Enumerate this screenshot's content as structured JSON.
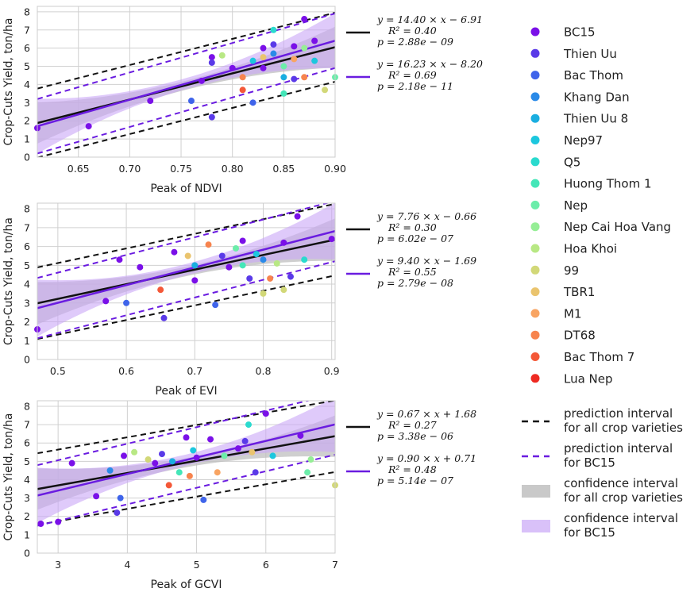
{
  "chart_data": [
    {
      "type": "scatter",
      "xlabel": "Peak of NDVI",
      "ylabel": "Crop-Cuts Yield, ton/ha",
      "xlim": [
        0.61,
        0.9
      ],
      "ylim": [
        0,
        8.3
      ],
      "xticks": [
        "0.65",
        "0.70",
        "0.75",
        "0.80",
        "0.85",
        "0.90"
      ],
      "xtick_values": [
        0.65,
        0.7,
        0.75,
        0.8,
        0.85,
        0.9
      ],
      "yticks": [
        "0",
        "1",
        "2",
        "3",
        "4",
        "5",
        "6",
        "7",
        "8"
      ],
      "grid": true,
      "fit_all": {
        "slope": 14.4,
        "intercept": -6.91,
        "eq": "y = 14.40 × x − 6.91",
        "r2": "R² = 0.40",
        "p": "p = 2.88e − 09",
        "pi_half": 1.9
      },
      "fit_bc15": {
        "slope": 16.23,
        "intercept": -8.2,
        "eq": "y = 16.23 × x − 8.20",
        "r2": "R² = 0.69",
        "p": "p = 2.18e − 11",
        "pi_half": 1.5
      },
      "points": [
        {
          "x": 0.61,
          "y": 1.6,
          "variety": "BC15"
        },
        {
          "x": 0.66,
          "y": 1.7,
          "variety": "BC15"
        },
        {
          "x": 0.72,
          "y": 3.1,
          "variety": "BC15"
        },
        {
          "x": 0.76,
          "y": 3.1,
          "variety": "Bac Thom"
        },
        {
          "x": 0.78,
          "y": 2.2,
          "variety": "Thien Uu"
        },
        {
          "x": 0.77,
          "y": 4.2,
          "variety": "BC15"
        },
        {
          "x": 0.78,
          "y": 5.5,
          "variety": "BC15"
        },
        {
          "x": 0.78,
          "y": 5.2,
          "variety": "Thien Uu"
        },
        {
          "x": 0.79,
          "y": 5.6,
          "variety": "Hoa Khoi"
        },
        {
          "x": 0.8,
          "y": 4.9,
          "variety": "BC15"
        },
        {
          "x": 0.81,
          "y": 3.7,
          "variety": "Bac Thom 7"
        },
        {
          "x": 0.81,
          "y": 4.4,
          "variety": "DT68"
        },
        {
          "x": 0.82,
          "y": 3.0,
          "variety": "Bac Thom"
        },
        {
          "x": 0.82,
          "y": 5.3,
          "variety": "Nep97"
        },
        {
          "x": 0.83,
          "y": 6.0,
          "variety": "BC15"
        },
        {
          "x": 0.83,
          "y": 5.5,
          "variety": "TBR1"
        },
        {
          "x": 0.84,
          "y": 6.2,
          "variety": "Thien Uu"
        },
        {
          "x": 0.84,
          "y": 7.0,
          "variety": "Q5"
        },
        {
          "x": 0.85,
          "y": 4.4,
          "variety": "Thien Uu 8"
        },
        {
          "x": 0.85,
          "y": 5.0,
          "variety": "Nep"
        },
        {
          "x": 0.85,
          "y": 3.5,
          "variety": "Huong Thom 1"
        },
        {
          "x": 0.86,
          "y": 6.1,
          "variety": "BC15"
        },
        {
          "x": 0.86,
          "y": 5.4,
          "variety": "M1"
        },
        {
          "x": 0.86,
          "y": 4.3,
          "variety": "Thien Uu"
        },
        {
          "x": 0.87,
          "y": 7.6,
          "variety": "BC15"
        },
        {
          "x": 0.87,
          "y": 6.0,
          "variety": "Nep Cai Hoa Vang"
        },
        {
          "x": 0.87,
          "y": 4.4,
          "variety": "DT68"
        },
        {
          "x": 0.88,
          "y": 6.4,
          "variety": "BC15"
        },
        {
          "x": 0.88,
          "y": 5.3,
          "variety": "Nep97"
        },
        {
          "x": 0.89,
          "y": 3.7,
          "variety": "99"
        },
        {
          "x": 0.9,
          "y": 4.4,
          "variety": "Nep"
        },
        {
          "x": 0.83,
          "y": 4.9,
          "variety": "BC15"
        },
        {
          "x": 0.84,
          "y": 5.7,
          "variety": "Khang Dan"
        }
      ]
    },
    {
      "type": "scatter",
      "xlabel": "Peak of EVI",
      "ylabel": "Crop-Cuts Yield, ton/ha",
      "xlim": [
        0.47,
        0.905
      ],
      "ylim": [
        0,
        8.3
      ],
      "xticks": [
        "0.5",
        "0.6",
        "0.7",
        "0.8",
        "0.9"
      ],
      "xtick_values": [
        0.5,
        0.6,
        0.7,
        0.8,
        0.9
      ],
      "yticks": [
        "0",
        "1",
        "2",
        "3",
        "4",
        "5",
        "6",
        "7",
        "8"
      ],
      "grid": true,
      "fit_all": {
        "slope": 7.76,
        "intercept": -0.66,
        "eq": "y = 7.76 × x − 0.66",
        "r2": "R² = 0.30",
        "p": "p = 6.02e − 07",
        "pi_half": 1.9
      },
      "fit_bc15": {
        "slope": 9.4,
        "intercept": -1.69,
        "eq": "y = 9.40 × x − 1.69",
        "r2": "R² = 0.55",
        "p": "p = 2.79e − 08",
        "pi_half": 1.6
      },
      "points": [
        {
          "x": 0.47,
          "y": 1.6,
          "variety": "BC15"
        },
        {
          "x": 0.57,
          "y": 3.1,
          "variety": "BC15"
        },
        {
          "x": 0.59,
          "y": 5.3,
          "variety": "BC15"
        },
        {
          "x": 0.6,
          "y": 3.0,
          "variety": "Bac Thom"
        },
        {
          "x": 0.62,
          "y": 4.9,
          "variety": "BC15"
        },
        {
          "x": 0.65,
          "y": 3.7,
          "variety": "Bac Thom 7"
        },
        {
          "x": 0.655,
          "y": 2.2,
          "variety": "Thien Uu"
        },
        {
          "x": 0.67,
          "y": 5.7,
          "variety": "BC15"
        },
        {
          "x": 0.69,
          "y": 5.5,
          "variety": "TBR1"
        },
        {
          "x": 0.7,
          "y": 5.0,
          "variety": "Thien Uu 8"
        },
        {
          "x": 0.7,
          "y": 4.2,
          "variety": "BC15"
        },
        {
          "x": 0.72,
          "y": 6.1,
          "variety": "DT68"
        },
        {
          "x": 0.73,
          "y": 2.9,
          "variety": "Bac Thom"
        },
        {
          "x": 0.74,
          "y": 5.5,
          "variety": "Thien Uu"
        },
        {
          "x": 0.75,
          "y": 4.9,
          "variety": "BC15"
        },
        {
          "x": 0.76,
          "y": 5.9,
          "variety": "Nep"
        },
        {
          "x": 0.77,
          "y": 6.3,
          "variety": "BC15"
        },
        {
          "x": 0.77,
          "y": 5.0,
          "variety": "Huong Thom 1"
        },
        {
          "x": 0.78,
          "y": 4.3,
          "variety": "Thien Uu"
        },
        {
          "x": 0.79,
          "y": 5.6,
          "variety": "Nep97"
        },
        {
          "x": 0.8,
          "y": 5.3,
          "variety": "Khang Dan"
        },
        {
          "x": 0.8,
          "y": 3.5,
          "variety": "99"
        },
        {
          "x": 0.81,
          "y": 4.3,
          "variety": "DT68"
        },
        {
          "x": 0.82,
          "y": 5.1,
          "variety": "Hoa Khoi"
        },
        {
          "x": 0.83,
          "y": 6.2,
          "variety": "BC15"
        },
        {
          "x": 0.84,
          "y": 4.4,
          "variety": "Thien Uu"
        },
        {
          "x": 0.85,
          "y": 7.6,
          "variety": "BC15"
        },
        {
          "x": 0.86,
          "y": 5.3,
          "variety": "Q5"
        },
        {
          "x": 0.9,
          "y": 6.4,
          "variety": "BC15"
        },
        {
          "x": 0.83,
          "y": 3.7,
          "variety": "99"
        }
      ]
    },
    {
      "type": "scatter",
      "xlabel": "Peak of GCVI",
      "ylabel": "Crop-Cuts Yield, ton/ha",
      "xlim": [
        2.7,
        7.0
      ],
      "ylim": [
        0,
        8.3
      ],
      "xticks": [
        "3",
        "4",
        "5",
        "6",
        "7"
      ],
      "xtick_values": [
        3,
        4,
        5,
        6,
        7
      ],
      "yticks": [
        "0",
        "1",
        "2",
        "3",
        "4",
        "5",
        "6",
        "7",
        "8"
      ],
      "grid": true,
      "fit_all": {
        "slope": 0.67,
        "intercept": 1.68,
        "eq": "y = 0.67 × x + 1.68",
        "r2": "R² = 0.27",
        "p": "p = 3.38e − 06",
        "pi_half": 1.95
      },
      "fit_bc15": {
        "slope": 0.9,
        "intercept": 0.71,
        "eq": "y = 0.90 × x + 0.71",
        "r2": "R² = 0.48",
        "p": "p = 5.14e − 07",
        "pi_half": 1.65
      },
      "points": [
        {
          "x": 2.75,
          "y": 1.6,
          "variety": "BC15"
        },
        {
          "x": 3.0,
          "y": 1.7,
          "variety": "BC15"
        },
        {
          "x": 3.2,
          "y": 4.9,
          "variety": "BC15"
        },
        {
          "x": 3.55,
          "y": 3.1,
          "variety": "BC15"
        },
        {
          "x": 3.75,
          "y": 4.5,
          "variety": "Khang Dan"
        },
        {
          "x": 3.85,
          "y": 2.2,
          "variety": "Thien Uu"
        },
        {
          "x": 3.9,
          "y": 3.0,
          "variety": "Bac Thom"
        },
        {
          "x": 3.95,
          "y": 5.3,
          "variety": "BC15"
        },
        {
          "x": 4.1,
          "y": 5.5,
          "variety": "Hoa Khoi"
        },
        {
          "x": 4.3,
          "y": 5.1,
          "variety": "99"
        },
        {
          "x": 4.4,
          "y": 4.9,
          "variety": "BC15"
        },
        {
          "x": 4.5,
          "y": 5.4,
          "variety": "Thien Uu"
        },
        {
          "x": 4.6,
          "y": 3.7,
          "variety": "Bac Thom 7"
        },
        {
          "x": 4.65,
          "y": 5.0,
          "variety": "Thien Uu 8"
        },
        {
          "x": 4.75,
          "y": 4.4,
          "variety": "Huong Thom 1"
        },
        {
          "x": 4.85,
          "y": 6.3,
          "variety": "BC15"
        },
        {
          "x": 4.9,
          "y": 4.2,
          "variety": "DT68"
        },
        {
          "x": 4.95,
          "y": 5.6,
          "variety": "Nep97"
        },
        {
          "x": 5.0,
          "y": 5.2,
          "variety": "BC15"
        },
        {
          "x": 5.1,
          "y": 2.9,
          "variety": "Bac Thom"
        },
        {
          "x": 5.2,
          "y": 6.2,
          "variety": "BC15"
        },
        {
          "x": 5.3,
          "y": 4.4,
          "variety": "M1"
        },
        {
          "x": 5.4,
          "y": 5.3,
          "variety": "Nep"
        },
        {
          "x": 5.6,
          "y": 5.7,
          "variety": "BC15"
        },
        {
          "x": 5.7,
          "y": 6.1,
          "variety": "Thien Uu"
        },
        {
          "x": 5.75,
          "y": 7.0,
          "variety": "Q5"
        },
        {
          "x": 5.8,
          "y": 5.5,
          "variety": "TBR1"
        },
        {
          "x": 5.85,
          "y": 4.4,
          "variety": "Thien Uu"
        },
        {
          "x": 6.0,
          "y": 7.6,
          "variety": "BC15"
        },
        {
          "x": 6.1,
          "y": 5.3,
          "variety": "Nep97"
        },
        {
          "x": 6.5,
          "y": 6.4,
          "variety": "BC15"
        },
        {
          "x": 6.6,
          "y": 4.4,
          "variety": "Nep"
        },
        {
          "x": 6.65,
          "y": 5.1,
          "variety": "Nep Cai Hoa Vang"
        },
        {
          "x": 7.0,
          "y": 3.7,
          "variety": "99"
        }
      ]
    }
  ],
  "colors": {
    "all_fit": "#111111",
    "bc15_fit": "#6a1ce0",
    "ci_all": "#bfbfbf",
    "ci_bc15": "#c9a6f6",
    "grid": "#d0d0d0",
    "frame": "#cccccc"
  },
  "varieties": [
    {
      "name": "BC15",
      "color": "#7a10e8"
    },
    {
      "name": "Thien Uu",
      "color": "#5a3ae8"
    },
    {
      "name": "Bac Thom",
      "color": "#3f64ea"
    },
    {
      "name": "Khang Dan",
      "color": "#2a8ae8"
    },
    {
      "name": "Thien Uu 8",
      "color": "#1aaee0"
    },
    {
      "name": "Nep97",
      "color": "#1cc7de"
    },
    {
      "name": "Q5",
      "color": "#2adace"
    },
    {
      "name": "Huong Thom 1",
      "color": "#44e6b8"
    },
    {
      "name": "Nep",
      "color": "#6cedaa"
    },
    {
      "name": "Nep Cai Hoa Vang",
      "color": "#96ee96"
    },
    {
      "name": "Hoa Khoi",
      "color": "#b8e884"
    },
    {
      "name": "99",
      "color": "#d2d878"
    },
    {
      "name": "TBR1",
      "color": "#eac46e"
    },
    {
      "name": "M1",
      "color": "#f8a462"
    },
    {
      "name": "DT68",
      "color": "#f7844e"
    },
    {
      "name": "Bac Thom 7",
      "color": "#f45838"
    },
    {
      "name": "Lua Nep",
      "color": "#ee2a22"
    }
  ],
  "legend_intervals": [
    {
      "style": "dash-black",
      "lines": [
        "prediction interval",
        "for all crop varieties"
      ]
    },
    {
      "style": "dash-purple",
      "lines": [
        "prediction interval",
        "for BC15"
      ]
    },
    {
      "style": "patch-gray",
      "lines": [
        "confidence interval",
        "for all crop varieties"
      ]
    },
    {
      "style": "patch-purple",
      "lines": [
        "confidence interval",
        "for BC15"
      ]
    }
  ]
}
